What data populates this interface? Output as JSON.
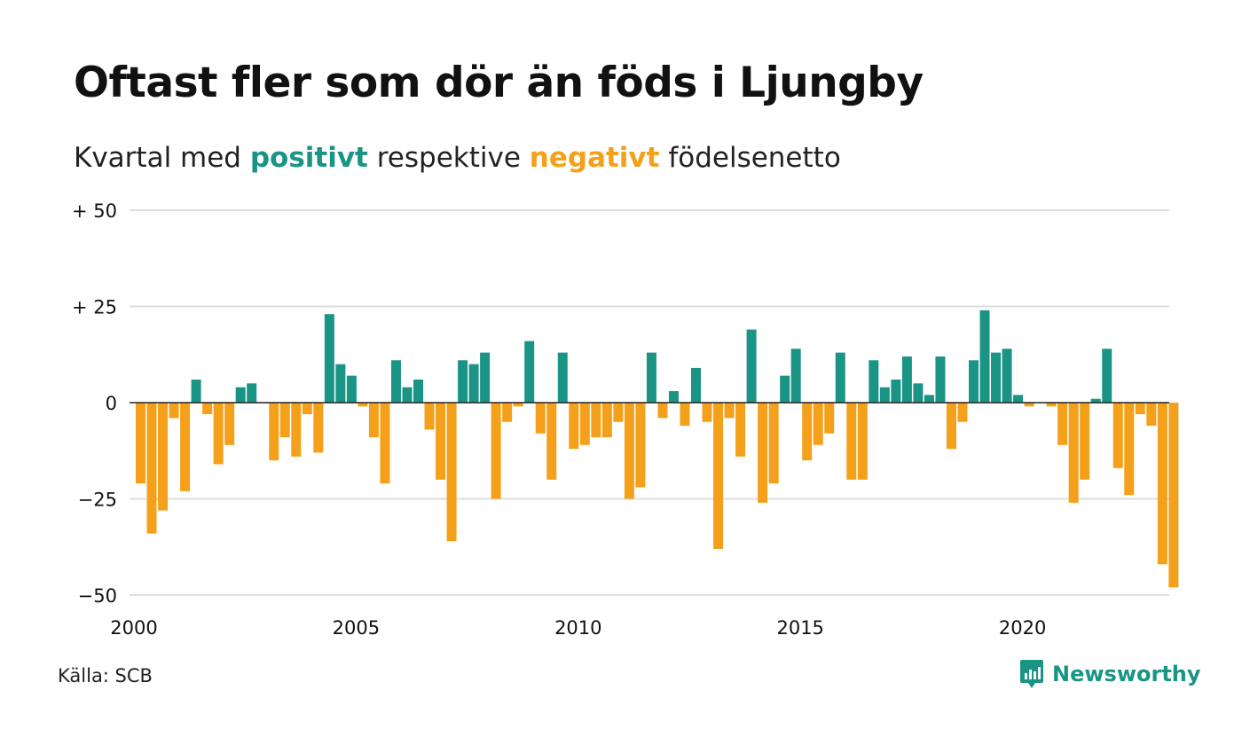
{
  "title": "Oftast fler som dör än föds i Ljungby",
  "subtitle": {
    "prefix": "Kvartal med ",
    "positive_word": "positivt",
    "middle": " respektive ",
    "negative_word": "negativt",
    "suffix": " födelsenetto"
  },
  "source": "Källa: SCB",
  "brand": "Newsworthy",
  "logo_icon": "newsworthy-chart-bubble-icon",
  "colors": {
    "positive": "#1a9485",
    "negative": "#f5a01a",
    "grid": "#dddddd",
    "zero_line": "#222222"
  },
  "chart_data": {
    "type": "bar",
    "title": "Oftast fler som dör än föds i Ljungby",
    "subtitle": "Kvartal med positivt respektive negativt födelsenetto",
    "x_start": "2000 Q1",
    "x_ticks": [
      "2000",
      "2005",
      "2010",
      "2015",
      "2020"
    ],
    "y_ticks": [
      50,
      25,
      0,
      -25,
      -50
    ],
    "y_tick_labels": [
      "+ 50",
      "+ 25",
      "0",
      "−25",
      "−50"
    ],
    "ylim": [
      -50,
      50
    ],
    "grid": true,
    "categories": [
      "2000 Q1",
      "2000 Q2",
      "2000 Q3",
      "2000 Q4",
      "2001 Q1",
      "2001 Q2",
      "2001 Q3",
      "2001 Q4",
      "2002 Q1",
      "2002 Q2",
      "2002 Q3",
      "2002 Q4",
      "2003 Q1",
      "2003 Q2",
      "2003 Q3",
      "2003 Q4",
      "2004 Q1",
      "2004 Q2",
      "2004 Q3",
      "2004 Q4",
      "2005 Q1",
      "2005 Q2",
      "2005 Q3",
      "2005 Q4",
      "2006 Q1",
      "2006 Q2",
      "2006 Q3",
      "2006 Q4",
      "2007 Q1",
      "2007 Q2",
      "2007 Q3",
      "2007 Q4",
      "2008 Q1",
      "2008 Q2",
      "2008 Q3",
      "2008 Q4",
      "2009 Q1",
      "2009 Q2",
      "2009 Q3",
      "2009 Q4",
      "2010 Q1",
      "2010 Q2",
      "2010 Q3",
      "2010 Q4",
      "2011 Q1",
      "2011 Q2",
      "2011 Q3",
      "2011 Q4",
      "2012 Q1",
      "2012 Q2",
      "2012 Q3",
      "2012 Q4",
      "2013 Q1",
      "2013 Q2",
      "2013 Q3",
      "2013 Q4",
      "2014 Q1",
      "2014 Q2",
      "2014 Q3",
      "2014 Q4",
      "2015 Q1",
      "2015 Q2",
      "2015 Q3",
      "2015 Q4",
      "2016 Q1",
      "2016 Q2",
      "2016 Q3",
      "2016 Q4",
      "2017 Q1",
      "2017 Q2",
      "2017 Q3",
      "2017 Q4",
      "2018 Q1",
      "2018 Q2",
      "2018 Q3",
      "2018 Q4",
      "2019 Q1",
      "2019 Q2",
      "2019 Q3",
      "2019 Q4",
      "2020 Q1",
      "2020 Q2",
      "2020 Q3",
      "2020 Q4",
      "2021 Q1",
      "2021 Q2",
      "2021 Q3",
      "2021 Q4",
      "2022 Q1",
      "2022 Q2",
      "2022 Q3",
      "2022 Q4",
      "2023 Q1",
      "2023 Q2"
    ],
    "values": [
      -21,
      -34,
      -28,
      -4,
      -23,
      6,
      -3,
      -16,
      -11,
      4,
      5,
      0,
      -15,
      -9,
      -14,
      -3,
      -13,
      23,
      10,
      7,
      -1,
      -9,
      -21,
      11,
      4,
      6,
      -7,
      -20,
      -36,
      11,
      10,
      13,
      -25,
      -5,
      -1,
      16,
      -8,
      -20,
      13,
      -12,
      -11,
      -9,
      -9,
      -5,
      -25,
      -22,
      13,
      -4,
      3,
      -6,
      9,
      -5,
      -38,
      -4,
      -14,
      19,
      -26,
      -21,
      7,
      14,
      -15,
      -11,
      -8,
      13,
      -20,
      -20,
      11,
      4,
      6,
      12,
      5,
      2,
      12,
      -12,
      -5,
      11,
      24,
      13,
      14,
      2,
      -1,
      0,
      -1,
      -11,
      -26,
      -20,
      1,
      14,
      -17,
      -24,
      -3,
      -6,
      -42,
      -48
    ]
  }
}
